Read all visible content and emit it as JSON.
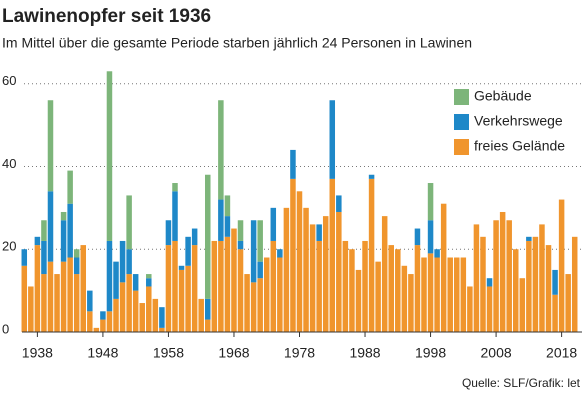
{
  "chart_data": {
    "type": "stacked_bar",
    "title": "Lawinenopfer seit 1936",
    "subtitle": "Im Mittel über die gesamte Periode starben jährlich 24 Personen in Lawinen",
    "source": "Quelle: SLF/Grafik: let",
    "x": [
      1936,
      1937,
      1938,
      1939,
      1940,
      1941,
      1942,
      1943,
      1944,
      1945,
      1946,
      1947,
      1948,
      1949,
      1950,
      1951,
      1952,
      1953,
      1954,
      1955,
      1956,
      1957,
      1958,
      1959,
      1960,
      1961,
      1962,
      1963,
      1964,
      1965,
      1966,
      1967,
      1968,
      1969,
      1970,
      1971,
      1972,
      1973,
      1974,
      1975,
      1976,
      1977,
      1978,
      1979,
      1980,
      1981,
      1982,
      1983,
      1984,
      1985,
      1986,
      1987,
      1988,
      1989,
      1990,
      1991,
      1992,
      1993,
      1994,
      1995,
      1996,
      1997,
      1998,
      1999,
      2000,
      2001,
      2002,
      2003,
      2004,
      2005,
      2006,
      2007,
      2008,
      2009,
      2010,
      2011,
      2012,
      2013,
      2014,
      2015,
      2016,
      2017,
      2018,
      2019,
      2020
    ],
    "xlim": [
      1935.5,
      2020.5
    ],
    "xticks": [
      1938,
      1948,
      1958,
      1968,
      1978,
      1988,
      1998,
      2008,
      2018
    ],
    "ylim": [
      0,
      65
    ],
    "yticks": [
      0,
      20,
      40,
      60
    ],
    "grid": true,
    "legend": "top-right",
    "series": [
      {
        "name": "freies Gelände",
        "color": "#f0952d",
        "values": [
          16,
          11,
          21,
          14,
          17,
          14,
          17,
          18,
          14,
          21,
          5,
          1,
          3,
          5,
          8,
          12,
          14,
          10,
          7,
          11,
          8,
          1,
          21,
          22,
          15,
          16,
          21,
          8,
          3,
          22,
          22,
          23,
          25,
          20,
          14,
          12,
          13,
          18,
          22,
          18,
          30,
          37,
          34,
          30,
          26,
          22,
          28,
          37,
          29,
          22,
          20,
          15,
          22,
          37,
          17,
          28,
          21,
          20,
          16,
          14,
          21,
          18,
          19,
          18,
          31,
          18,
          18,
          18,
          11,
          26,
          23,
          11,
          27,
          29,
          27,
          20,
          13,
          22,
          23,
          26,
          21,
          9,
          32,
          14,
          23
        ]
      },
      {
        "name": "Verkehrswege",
        "color": "#1e88c8",
        "values": [
          4,
          0,
          2,
          8,
          17,
          0,
          10,
          13,
          4,
          0,
          5,
          0,
          2,
          17,
          9,
          10,
          6,
          4,
          0,
          2,
          0,
          5,
          6,
          12,
          1,
          7,
          4,
          0,
          5,
          0,
          10,
          5,
          0,
          2,
          0,
          15,
          4,
          0,
          8,
          2,
          0,
          7,
          0,
          0,
          0,
          4,
          0,
          19,
          4,
          0,
          0,
          0,
          0,
          1,
          0,
          0,
          0,
          0,
          0,
          0,
          4,
          0,
          8,
          2,
          0,
          0,
          0,
          0,
          0,
          0,
          0,
          2,
          0,
          0,
          0,
          0,
          0,
          1,
          0,
          0,
          0,
          6,
          0,
          0,
          0
        ]
      },
      {
        "name": "Gebäude",
        "color": "#7db57a",
        "values": [
          0,
          0,
          0,
          5,
          22,
          0,
          2,
          8,
          2,
          0,
          0,
          0,
          0,
          41,
          0,
          0,
          13,
          0,
          0,
          1,
          0,
          0,
          0,
          2,
          0,
          0,
          0,
          0,
          30,
          0,
          24,
          5,
          0,
          5,
          0,
          0,
          10,
          0,
          0,
          0,
          0,
          0,
          0,
          0,
          0,
          0,
          0,
          0,
          0,
          0,
          0,
          0,
          0,
          0,
          0,
          0,
          0,
          0,
          0,
          0,
          0,
          0,
          9,
          0,
          0,
          0,
          0,
          0,
          0,
          0,
          0,
          0,
          0,
          0,
          0,
          0,
          0,
          0,
          0,
          0,
          0,
          0,
          0,
          0,
          0
        ]
      }
    ]
  }
}
